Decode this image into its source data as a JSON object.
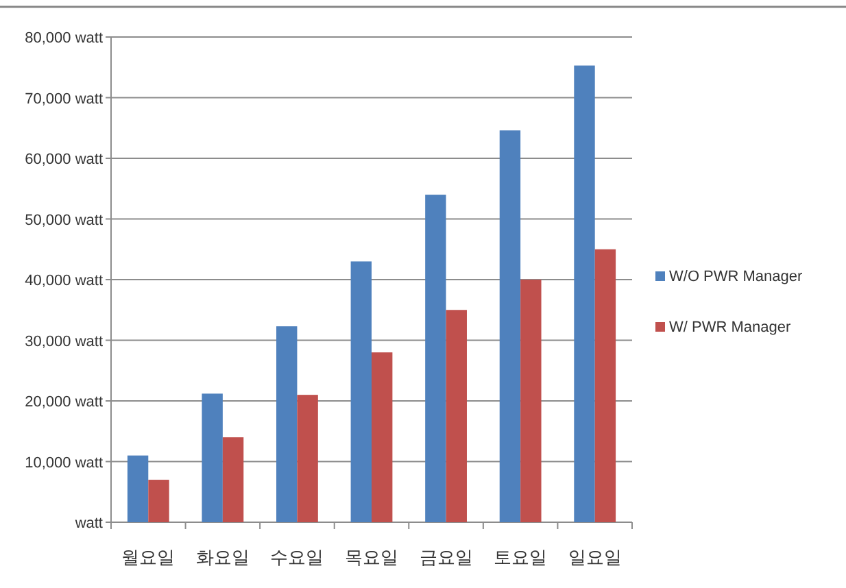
{
  "chart_data": {
    "type": "bar",
    "categories": [
      "월요일",
      "화요일",
      "수요일",
      "목요일",
      "금요일",
      "토요일",
      "일요일"
    ],
    "series": [
      {
        "name": "W/O PWR Manager",
        "color": "#4f81bd",
        "values": [
          11000,
          21200,
          32300,
          43000,
          54000,
          64600,
          75300
        ]
      },
      {
        "name": "W/ PWR Manager",
        "color": "#c0504d",
        "values": [
          7000,
          14000,
          21000,
          28000,
          35000,
          40000,
          45000
        ]
      }
    ],
    "ylim": [
      0,
      80000
    ],
    "yticks": [
      {
        "value": 0,
        "label": "watt"
      },
      {
        "value": 10000,
        "label": "10,000 watt"
      },
      {
        "value": 20000,
        "label": "20,000 watt"
      },
      {
        "value": 30000,
        "label": "30,000 watt"
      },
      {
        "value": 40000,
        "label": "40,000 watt"
      },
      {
        "value": 50000,
        "label": "50,000 watt"
      },
      {
        "value": 60000,
        "label": "60,000 watt"
      },
      {
        "value": 70000,
        "label": "70,000 watt"
      },
      {
        "value": 80000,
        "label": "80,000 watt"
      }
    ],
    "grid": "y",
    "legend": "right"
  }
}
